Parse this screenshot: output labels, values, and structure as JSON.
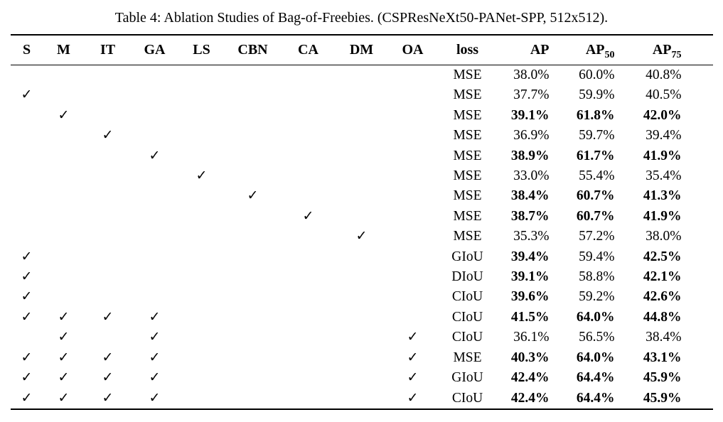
{
  "caption": "Table 4: Ablation Studies of Bag-of-Freebies. (CSPResNeXt50-PANet-SPP, 512x512).",
  "check_glyph": "✓",
  "table": {
    "flag_columns": [
      "S",
      "M",
      "IT",
      "GA",
      "LS",
      "CBN",
      "CA",
      "DM",
      "OA"
    ],
    "loss_header": "loss",
    "metric_headers": [
      {
        "base": "AP",
        "sub": ""
      },
      {
        "base": "AP",
        "sub": "50"
      },
      {
        "base": "AP",
        "sub": "75"
      }
    ],
    "rows": [
      {
        "checks": [
          0,
          0,
          0,
          0,
          0,
          0,
          0,
          0,
          0
        ],
        "loss": "MSE",
        "ap": "38.0%",
        "ap50": "60.0%",
        "ap75": "40.8%",
        "bold": [
          false,
          false,
          false
        ]
      },
      {
        "checks": [
          1,
          0,
          0,
          0,
          0,
          0,
          0,
          0,
          0
        ],
        "loss": "MSE",
        "ap": "37.7%",
        "ap50": "59.9%",
        "ap75": "40.5%",
        "bold": [
          false,
          false,
          false
        ]
      },
      {
        "checks": [
          0,
          1,
          0,
          0,
          0,
          0,
          0,
          0,
          0
        ],
        "loss": "MSE",
        "ap": "39.1%",
        "ap50": "61.8%",
        "ap75": "42.0%",
        "bold": [
          true,
          true,
          true
        ]
      },
      {
        "checks": [
          0,
          0,
          1,
          0,
          0,
          0,
          0,
          0,
          0
        ],
        "loss": "MSE",
        "ap": "36.9%",
        "ap50": "59.7%",
        "ap75": "39.4%",
        "bold": [
          false,
          false,
          false
        ]
      },
      {
        "checks": [
          0,
          0,
          0,
          1,
          0,
          0,
          0,
          0,
          0
        ],
        "loss": "MSE",
        "ap": "38.9%",
        "ap50": "61.7%",
        "ap75": "41.9%",
        "bold": [
          true,
          true,
          true
        ]
      },
      {
        "checks": [
          0,
          0,
          0,
          0,
          1,
          0,
          0,
          0,
          0
        ],
        "loss": "MSE",
        "ap": "33.0%",
        "ap50": "55.4%",
        "ap75": "35.4%",
        "bold": [
          false,
          false,
          false
        ]
      },
      {
        "checks": [
          0,
          0,
          0,
          0,
          0,
          1,
          0,
          0,
          0
        ],
        "loss": "MSE",
        "ap": "38.4%",
        "ap50": "60.7%",
        "ap75": "41.3%",
        "bold": [
          true,
          true,
          true
        ]
      },
      {
        "checks": [
          0,
          0,
          0,
          0,
          0,
          0,
          1,
          0,
          0
        ],
        "loss": "MSE",
        "ap": "38.7%",
        "ap50": "60.7%",
        "ap75": "41.9%",
        "bold": [
          true,
          true,
          true
        ]
      },
      {
        "checks": [
          0,
          0,
          0,
          0,
          0,
          0,
          0,
          1,
          0
        ],
        "loss": "MSE",
        "ap": "35.3%",
        "ap50": "57.2%",
        "ap75": "38.0%",
        "bold": [
          false,
          false,
          false
        ]
      },
      {
        "checks": [
          1,
          0,
          0,
          0,
          0,
          0,
          0,
          0,
          0
        ],
        "loss": "GIoU",
        "ap": "39.4%",
        "ap50": "59.4%",
        "ap75": "42.5%",
        "bold": [
          true,
          false,
          true
        ]
      },
      {
        "checks": [
          1,
          0,
          0,
          0,
          0,
          0,
          0,
          0,
          0
        ],
        "loss": "DIoU",
        "ap": "39.1%",
        "ap50": "58.8%",
        "ap75": "42.1%",
        "bold": [
          true,
          false,
          true
        ]
      },
      {
        "checks": [
          1,
          0,
          0,
          0,
          0,
          0,
          0,
          0,
          0
        ],
        "loss": "CIoU",
        "ap": "39.6%",
        "ap50": "59.2%",
        "ap75": "42.6%",
        "bold": [
          true,
          false,
          true
        ]
      },
      {
        "checks": [
          1,
          1,
          1,
          1,
          0,
          0,
          0,
          0,
          0
        ],
        "loss": "CIoU",
        "ap": "41.5%",
        "ap50": "64.0%",
        "ap75": "44.8%",
        "bold": [
          true,
          true,
          true
        ]
      },
      {
        "checks": [
          0,
          1,
          0,
          1,
          0,
          0,
          0,
          0,
          1
        ],
        "loss": "CIoU",
        "ap": "36.1%",
        "ap50": "56.5%",
        "ap75": "38.4%",
        "bold": [
          false,
          false,
          false
        ]
      },
      {
        "checks": [
          1,
          1,
          1,
          1,
          0,
          0,
          0,
          0,
          1
        ],
        "loss": "MSE",
        "ap": "40.3%",
        "ap50": "64.0%",
        "ap75": "43.1%",
        "bold": [
          true,
          true,
          true
        ]
      },
      {
        "checks": [
          1,
          1,
          1,
          1,
          0,
          0,
          0,
          0,
          1
        ],
        "loss": "GIoU",
        "ap": "42.4%",
        "ap50": "64.4%",
        "ap75": "45.9%",
        "bold": [
          true,
          true,
          true
        ]
      },
      {
        "checks": [
          1,
          1,
          1,
          1,
          0,
          0,
          0,
          0,
          1
        ],
        "loss": "CIoU",
        "ap": "42.4%",
        "ap50": "64.4%",
        "ap75": "45.9%",
        "bold": [
          true,
          true,
          true
        ]
      }
    ]
  }
}
